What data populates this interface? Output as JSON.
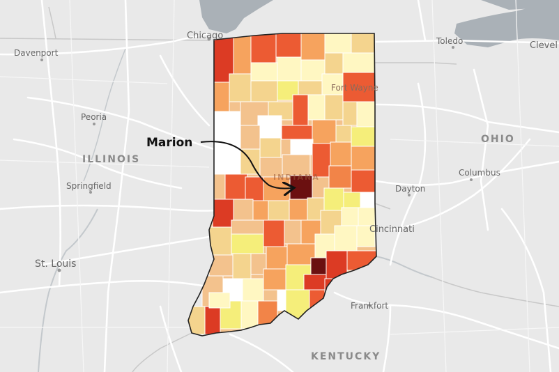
{
  "map": {
    "cities": [
      {
        "key": "chicago",
        "label": "Chicago"
      },
      {
        "key": "davenport",
        "label": "Davenport"
      },
      {
        "key": "peoria",
        "label": "Peoria"
      },
      {
        "key": "springfield",
        "label": "Springfield"
      },
      {
        "key": "st_louis",
        "label": "St. Louis"
      },
      {
        "key": "toledo",
        "label": "Toledo"
      },
      {
        "key": "cleveland",
        "label": "Clevel"
      },
      {
        "key": "fort_wayne",
        "label": "Fort Wayne"
      },
      {
        "key": "columbus",
        "label": "Columbus"
      },
      {
        "key": "dayton",
        "label": "Dayton"
      },
      {
        "key": "cincinnati",
        "label": "Cincinnati"
      },
      {
        "key": "frankfort",
        "label": "Frankfort"
      }
    ],
    "states": [
      {
        "key": "illinois",
        "label": "ILLINOIS"
      },
      {
        "key": "ohio",
        "label": "OHIO"
      },
      {
        "key": "kentucky",
        "label": "KENTUCKY"
      },
      {
        "key": "indiana",
        "label": "INDIANA"
      }
    ],
    "highlight": {
      "county": "Marion",
      "label": "Marion"
    },
    "colors": {
      "background": "#e9e9e9",
      "water": "#aab1b7",
      "road": "#ffffff",
      "state_border": "#222222",
      "scale": [
        "#fff7c2",
        "#f5ee7a",
        "#f4d48e",
        "#f3c28d",
        "#f6a35e",
        "#f28448",
        "#ec5b33",
        "#dc3b24",
        "#b3211b",
        "#6b1010"
      ]
    }
  }
}
